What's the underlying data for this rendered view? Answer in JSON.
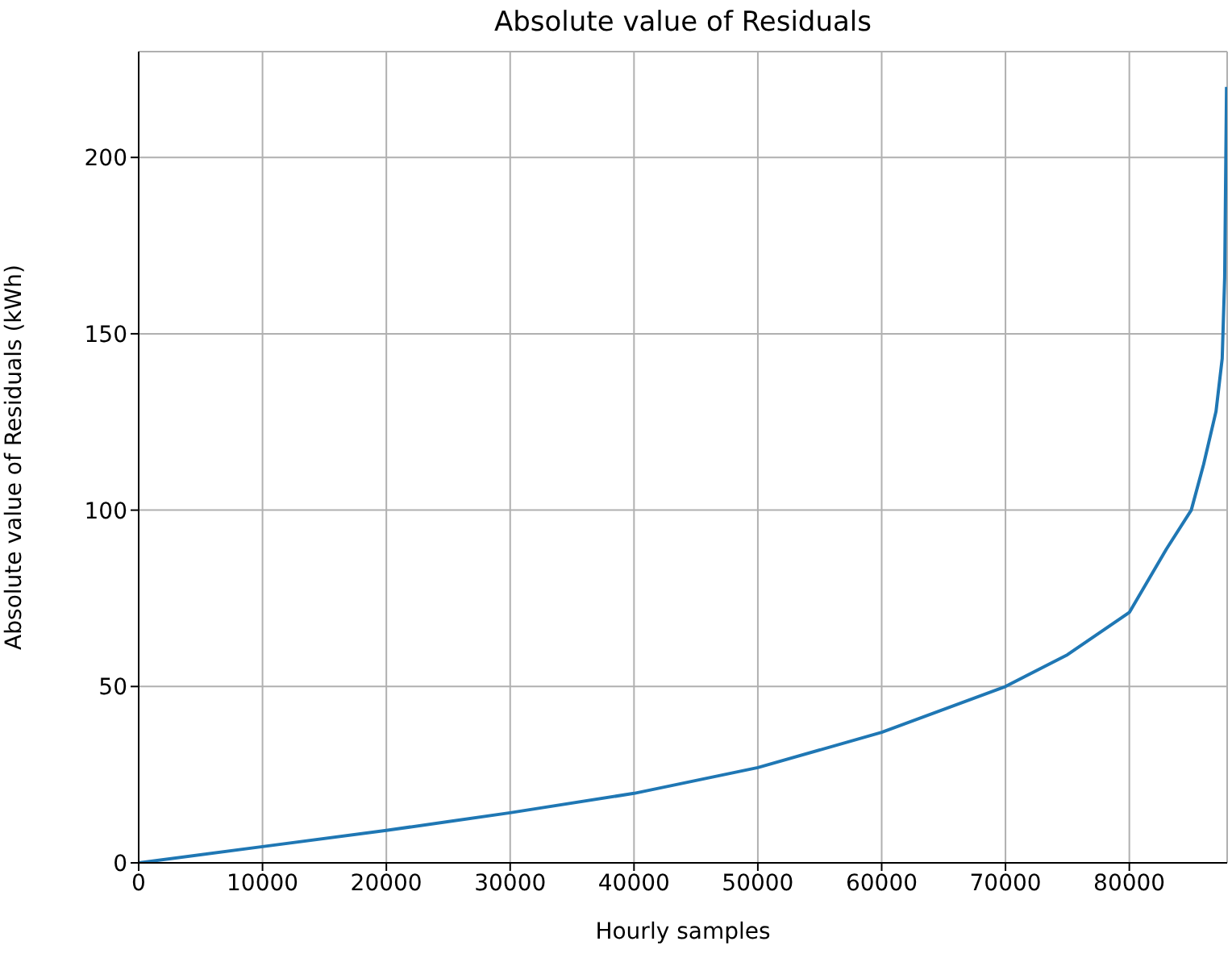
{
  "chart_data": {
    "type": "line",
    "title": "Absolute value of Residuals",
    "xlabel": "Hourly samples",
    "ylabel": "Absolute value of Residuals (kWh)",
    "x": [
      0,
      10000,
      20000,
      30000,
      40000,
      50000,
      60000,
      70000,
      75000,
      80000,
      83000,
      85000,
      86000,
      87000,
      87500,
      87700,
      87850
    ],
    "series": [
      {
        "color": "#1f77b4",
        "values": [
          0,
          4.6,
          9.2,
          14.2,
          19.7,
          27,
          37,
          50,
          59,
          71,
          89,
          100,
          113,
          128,
          143,
          166,
          220
        ]
      }
    ],
    "xlim": [
      0,
      87900
    ],
    "xticks": [
      0,
      10000,
      20000,
      30000,
      40000,
      50000,
      60000,
      70000,
      80000
    ],
    "ylim": [
      0,
      230
    ],
    "yticks": [
      0,
      50,
      100,
      150,
      200
    ],
    "grid": true,
    "marker": "none",
    "line_style": "solid"
  }
}
